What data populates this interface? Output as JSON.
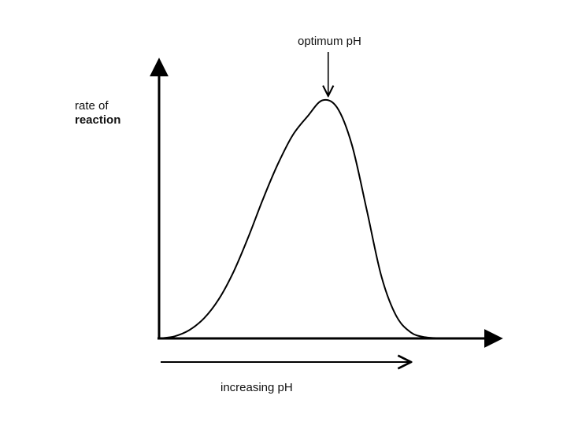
{
  "chart_data": {
    "type": "line",
    "title": "",
    "xlabel": "increasing pH",
    "ylabel_line1": "rate of",
    "ylabel_line2": "reaction",
    "annotation": "optimum pH",
    "xlim": [
      0,
      10
    ],
    "ylim": [
      0,
      10
    ],
    "grid": false,
    "legend": "none",
    "series": [
      {
        "x": [
          0,
          0.5,
          1,
          1.5,
          2,
          2.5,
          3,
          3.5,
          4,
          4.5,
          5,
          5.5,
          6,
          6.5,
          7,
          7.5,
          8,
          8.5,
          9,
          9.5,
          10
        ],
        "y": [
          0,
          0.09,
          0.35,
          0.85,
          1.65,
          2.8,
          4.25,
          5.85,
          7.3,
          8.5,
          9.28,
          9.95,
          9.65,
          8.1,
          5.4,
          2.6,
          0.95,
          0.25,
          0.05,
          0.01,
          0
        ]
      }
    ],
    "optimum_x": 5.7,
    "colors": {
      "line": "#000000",
      "axis": "#000000"
    }
  }
}
